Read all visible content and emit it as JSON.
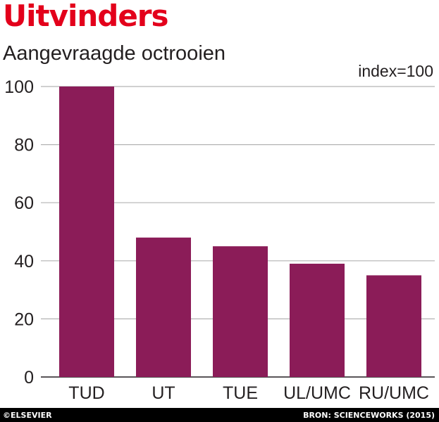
{
  "header": {
    "title": "Uitvinders",
    "subtitle": "Aangevraagde octrooien",
    "unit_note": "index=100"
  },
  "footer": {
    "copyright": "©ELSEVIER",
    "source": "BRON: SCIENCEWORKS (2015)"
  },
  "colors": {
    "bar": "#8b1c58",
    "title": "#e3001b",
    "grid": "#b3b3b3",
    "text": "#231f20"
  },
  "chart_data": {
    "type": "bar",
    "title": "Uitvinders",
    "subtitle": "Aangevraagde octrooien",
    "categories": [
      "TUD",
      "UT",
      "TUE",
      "UL/UMC",
      "RU/UMC"
    ],
    "values": [
      100,
      48,
      45,
      39,
      35
    ],
    "ylim": [
      0,
      100
    ],
    "yticks": [
      0,
      20,
      40,
      60,
      80,
      100
    ],
    "xlabel": "",
    "ylabel": "",
    "grid": true,
    "legend": "none"
  }
}
